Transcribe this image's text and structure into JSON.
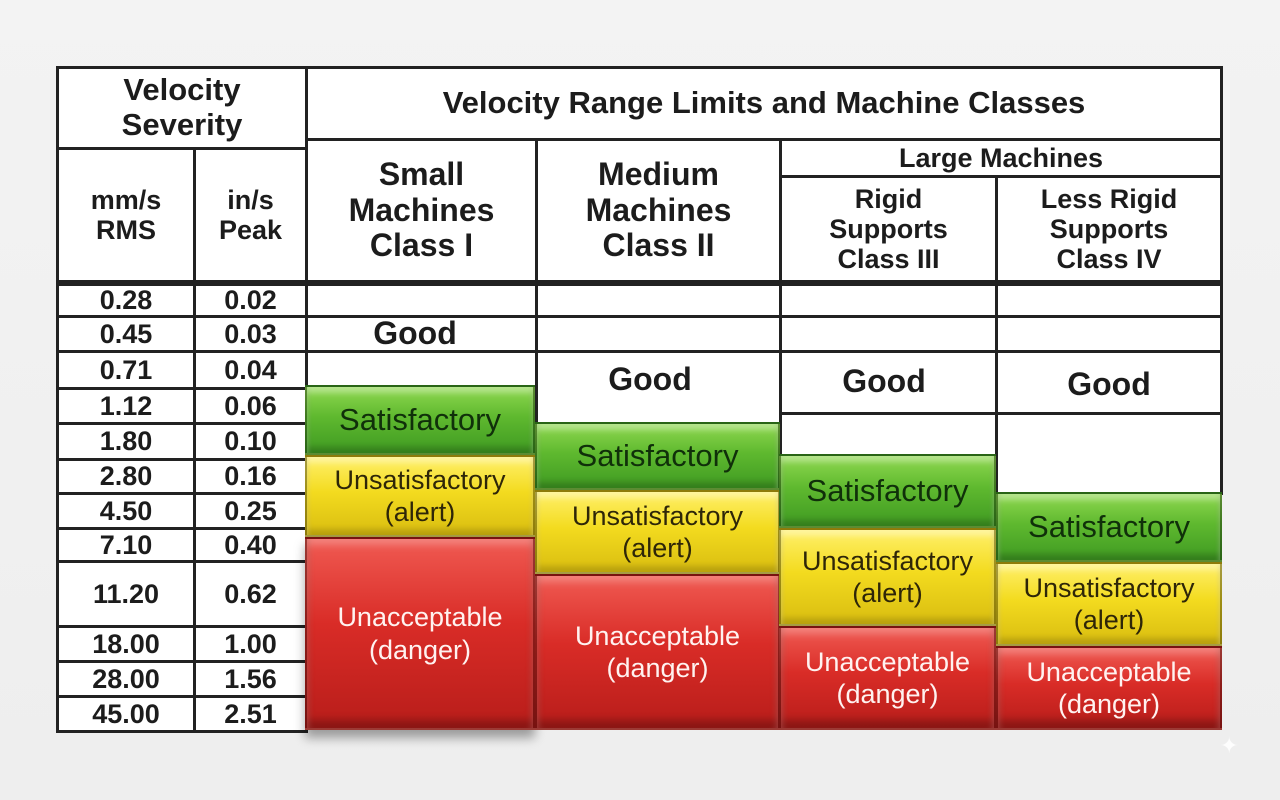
{
  "header": {
    "velocity_severity": "Velocity Severity",
    "title": "Velocity Range Limits and Machine Classes",
    "mm_s": "mm/s RMS",
    "in_s": "in/s Peak",
    "large_machines": "Large Machines"
  },
  "classes": [
    {
      "id": "class-i",
      "label": "Small Machines Class I"
    },
    {
      "id": "class-ii",
      "label": "Medium Machines Class II"
    },
    {
      "id": "class-iii",
      "label": "Rigid Supports Class III"
    },
    {
      "id": "class-iv",
      "label": "Less Rigid Supports Class IV"
    }
  ],
  "rows": [
    {
      "mm": "0.28",
      "in": "0.02"
    },
    {
      "mm": "0.45",
      "in": "0.03"
    },
    {
      "mm": "0.71",
      "in": "0.04"
    },
    {
      "mm": "1.12",
      "in": "0.06"
    },
    {
      "mm": "1.80",
      "in": "0.10"
    },
    {
      "mm": "2.80",
      "in": "0.16"
    },
    {
      "mm": "4.50",
      "in": "0.25"
    },
    {
      "mm": "7.10",
      "in": "0.40"
    },
    {
      "mm": "11.20",
      "in": "0.62"
    },
    {
      "mm": "18.00",
      "in": "1.00"
    },
    {
      "mm": "28.00",
      "in": "1.56"
    },
    {
      "mm": "45.00",
      "in": "2.51"
    }
  ],
  "zones": {
    "good": "Good",
    "satisfactory": "Satisfactory",
    "alert_line1": "Unsatisfactory",
    "alert_line2": "(alert)",
    "danger_line1": "Unacceptable",
    "danger_line2": "(danger)"
  },
  "colors": {
    "good": "#ffffff",
    "satisfactory": "#5fb92f",
    "alert": "#f3db1f",
    "danger": "#d92c27"
  }
}
